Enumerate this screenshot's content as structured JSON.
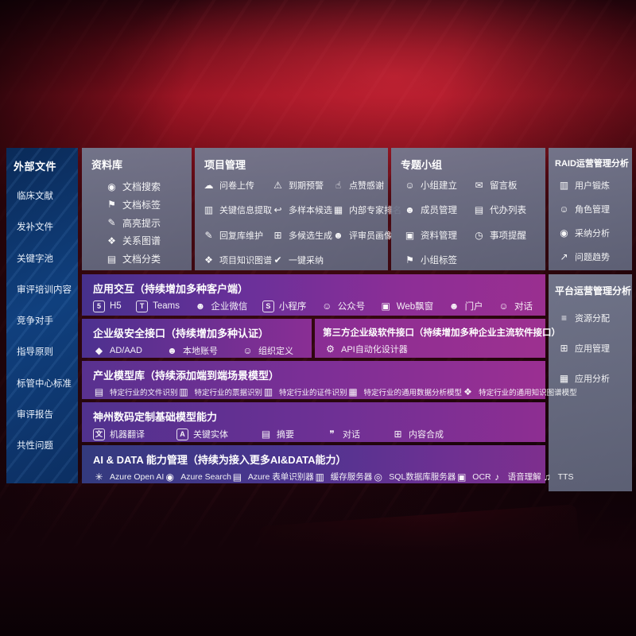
{
  "palette": {
    "background_red": "#a21523",
    "panel_gray": "#6a7084",
    "sidebar_blue": "#10407e",
    "row_violet": "#46308c",
    "row_magenta": "#9a2f90",
    "row_indigo": "#333a7e",
    "text": "#ffffff"
  },
  "sidebar": {
    "title": "外部文件",
    "items": [
      "临床文献",
      "发补文件",
      "关键字池",
      "审评培训内容",
      "竞争对手",
      "指导原则",
      "标管中心标准",
      "审评报告",
      "共性问题"
    ]
  },
  "panels": [
    {
      "title": "资料库",
      "items": [
        {
          "icon": "doc-search-icon",
          "label": "文档搜索"
        },
        {
          "icon": "doc-tag-icon",
          "label": "文档标签"
        },
        {
          "icon": "highlight-icon",
          "label": "高亮提示"
        },
        {
          "icon": "relation-graph-icon",
          "label": "关系图谱"
        },
        {
          "icon": "doc-category-icon",
          "label": "文档分类"
        }
      ]
    },
    {
      "title": "项目管理",
      "items": [
        {
          "icon": "upload-icon",
          "label": "问卷上传"
        },
        {
          "icon": "alarm-icon",
          "label": "到期预警"
        },
        {
          "icon": "thumbs-up-icon",
          "label": "点赞感谢"
        },
        {
          "icon": "info-extract-icon",
          "label": "关键信息提取"
        },
        {
          "icon": "multi-sample-icon",
          "label": "多样本候选"
        },
        {
          "icon": "expert-ranking-icon",
          "label": "内部专家排名"
        },
        {
          "icon": "reply-maintain-icon",
          "label": "回复库维护"
        },
        {
          "icon": "multi-generate-icon",
          "label": "多候选生成"
        },
        {
          "icon": "reviewer-portrait-icon",
          "label": "评审员画像"
        },
        {
          "icon": "project-graph-icon",
          "label": "项目知识图谱"
        },
        {
          "icon": "one-click-adopt-icon",
          "label": "一键采纳"
        }
      ]
    },
    {
      "title": "专题小组",
      "items": [
        {
          "icon": "group-create-icon",
          "label": "小组建立"
        },
        {
          "icon": "message-board-icon",
          "label": "留言板"
        },
        {
          "icon": "member-manage-icon",
          "label": "成员管理"
        },
        {
          "icon": "todo-list-icon",
          "label": "代办列表"
        },
        {
          "icon": "material-manage-icon",
          "label": "资料管理"
        },
        {
          "icon": "reminder-icon",
          "label": "事项提醒"
        },
        {
          "icon": "group-tag-icon",
          "label": "小组标签"
        }
      ]
    }
  ],
  "right_panels": [
    {
      "title": "RAID运营管理分析",
      "items": [
        {
          "icon": "user-card-icon",
          "label": "用户锻炼"
        },
        {
          "icon": "role-manage-icon",
          "label": "角色管理"
        },
        {
          "icon": "adoption-analysis-icon",
          "label": "采纳分析"
        },
        {
          "icon": "trend-icon",
          "label": "问题趋势"
        }
      ]
    },
    {
      "title": "平台运营管理分析",
      "items": [
        {
          "icon": "resource-allocation-icon",
          "label": "资源分配"
        },
        {
          "icon": "app-manage-icon",
          "label": "应用管理"
        },
        {
          "icon": "app-analysis-icon",
          "label": "应用分析"
        }
      ]
    }
  ],
  "rows": [
    {
      "title": "应用交互（持续增加多种客户端）",
      "items": [
        {
          "icon": "h5-icon",
          "label": "H5"
        },
        {
          "icon": "teams-icon",
          "label": "Teams"
        },
        {
          "icon": "wechat-work-icon",
          "label": "企业微信"
        },
        {
          "icon": "miniprogram-icon",
          "label": "小程序"
        },
        {
          "icon": "official-account-icon",
          "label": "公众号"
        },
        {
          "icon": "web-popup-icon",
          "label": "Web飘窗"
        },
        {
          "icon": "portal-icon",
          "label": "门户"
        },
        {
          "icon": "dialog-icon",
          "label": "对话"
        }
      ]
    },
    {
      "title": "企业级安全接口（持续增加多种认证）",
      "items": [
        {
          "icon": "ad-aad-icon",
          "label": "AD/AAD"
        },
        {
          "icon": "local-account-icon",
          "label": "本地账号"
        },
        {
          "icon": "org-define-icon",
          "label": "组织定义"
        }
      ]
    },
    {
      "title": "第三方企业级软件接口（持续增加多种企业主流软件接口）",
      "items": [
        {
          "icon": "api-designer-icon",
          "label": "API自动化设计器"
        }
      ]
    },
    {
      "title": "产业模型库（持续添加端到端场景模型）",
      "items": [
        {
          "icon": "file-recog-icon",
          "label": "特定行业的文件识别"
        },
        {
          "icon": "bill-recog-icon",
          "label": "特定行业的票据识别"
        },
        {
          "icon": "card-recog-icon",
          "label": "特定行业的证件识别"
        },
        {
          "icon": "data-model-icon",
          "label": "特定行业的通用数据分析模型"
        },
        {
          "icon": "graph-model-icon",
          "label": "特定行业的通用知识图谱模型"
        }
      ]
    },
    {
      "title": "神州数码定制基础模型能力",
      "items": [
        {
          "icon": "translate-icon",
          "label": "机器翻译"
        },
        {
          "icon": "entity-icon",
          "label": "关键实体"
        },
        {
          "icon": "summary-icon",
          "label": "摘要"
        },
        {
          "icon": "chat-icon",
          "label": "对话"
        },
        {
          "icon": "compose-icon",
          "label": "内容合成"
        }
      ]
    },
    {
      "title": "AI & DATA 能力管理（持续为接入更多AI&DATA能力）",
      "items": [
        {
          "icon": "openai-icon",
          "label": "Azure Open AI"
        },
        {
          "icon": "azure-search-icon",
          "label": "Azure Search"
        },
        {
          "icon": "form-recog-icon",
          "label": "Azure 表单识别器"
        },
        {
          "icon": "cache-server-icon",
          "label": "缓存服务器"
        },
        {
          "icon": "sql-db-icon",
          "label": "SQL数据库服务器"
        },
        {
          "icon": "ocr-icon",
          "label": "OCR"
        },
        {
          "icon": "speech-icon",
          "label": "语音理解"
        },
        {
          "icon": "tts-icon",
          "label": "TTS"
        }
      ]
    }
  ],
  "icon_glyphs": {
    "doc-search-icon": "◉",
    "doc-tag-icon": "⚑",
    "highlight-icon": "✎",
    "relation-graph-icon": "❖",
    "doc-category-icon": "▤",
    "upload-icon": "☁",
    "alarm-icon": "⚠",
    "thumbs-up-icon": "☝",
    "info-extract-icon": "▥",
    "multi-sample-icon": "↩",
    "expert-ranking-icon": "▦",
    "reply-maintain-icon": "✎",
    "multi-generate-icon": "⊞",
    "reviewer-portrait-icon": "☻",
    "project-graph-icon": "❖",
    "one-click-adopt-icon": "✔",
    "group-create-icon": "☺",
    "message-board-icon": "✉",
    "member-manage-icon": "☻",
    "todo-list-icon": "▤",
    "material-manage-icon": "▣",
    "reminder-icon": "◷",
    "group-tag-icon": "⚑",
    "user-card-icon": "▥",
    "role-manage-icon": "☺",
    "adoption-analysis-icon": "◉",
    "trend-icon": "↗",
    "resource-allocation-icon": "≡",
    "app-manage-icon": "⊞",
    "app-analysis-icon": "▦",
    "h5-icon": "5",
    "teams-icon": "T",
    "wechat-work-icon": "☻",
    "miniprogram-icon": "S",
    "official-account-icon": "☺",
    "web-popup-icon": "▣",
    "portal-icon": "☻",
    "dialog-icon": "☺",
    "ad-aad-icon": "◆",
    "local-account-icon": "☻",
    "org-define-icon": "☺",
    "api-designer-icon": "⚙",
    "file-recog-icon": "▤",
    "bill-recog-icon": "▥",
    "card-recog-icon": "▥",
    "data-model-icon": "▦",
    "graph-model-icon": "❖",
    "translate-icon": "文",
    "entity-icon": "A",
    "summary-icon": "▤",
    "chat-icon": "❞",
    "compose-icon": "⊞",
    "openai-icon": "✳",
    "azure-search-icon": "◉",
    "form-recog-icon": "▤",
    "cache-server-icon": "▥",
    "sql-db-icon": "◎",
    "ocr-icon": "▣",
    "speech-icon": "♪",
    "tts-icon": "♫"
  }
}
